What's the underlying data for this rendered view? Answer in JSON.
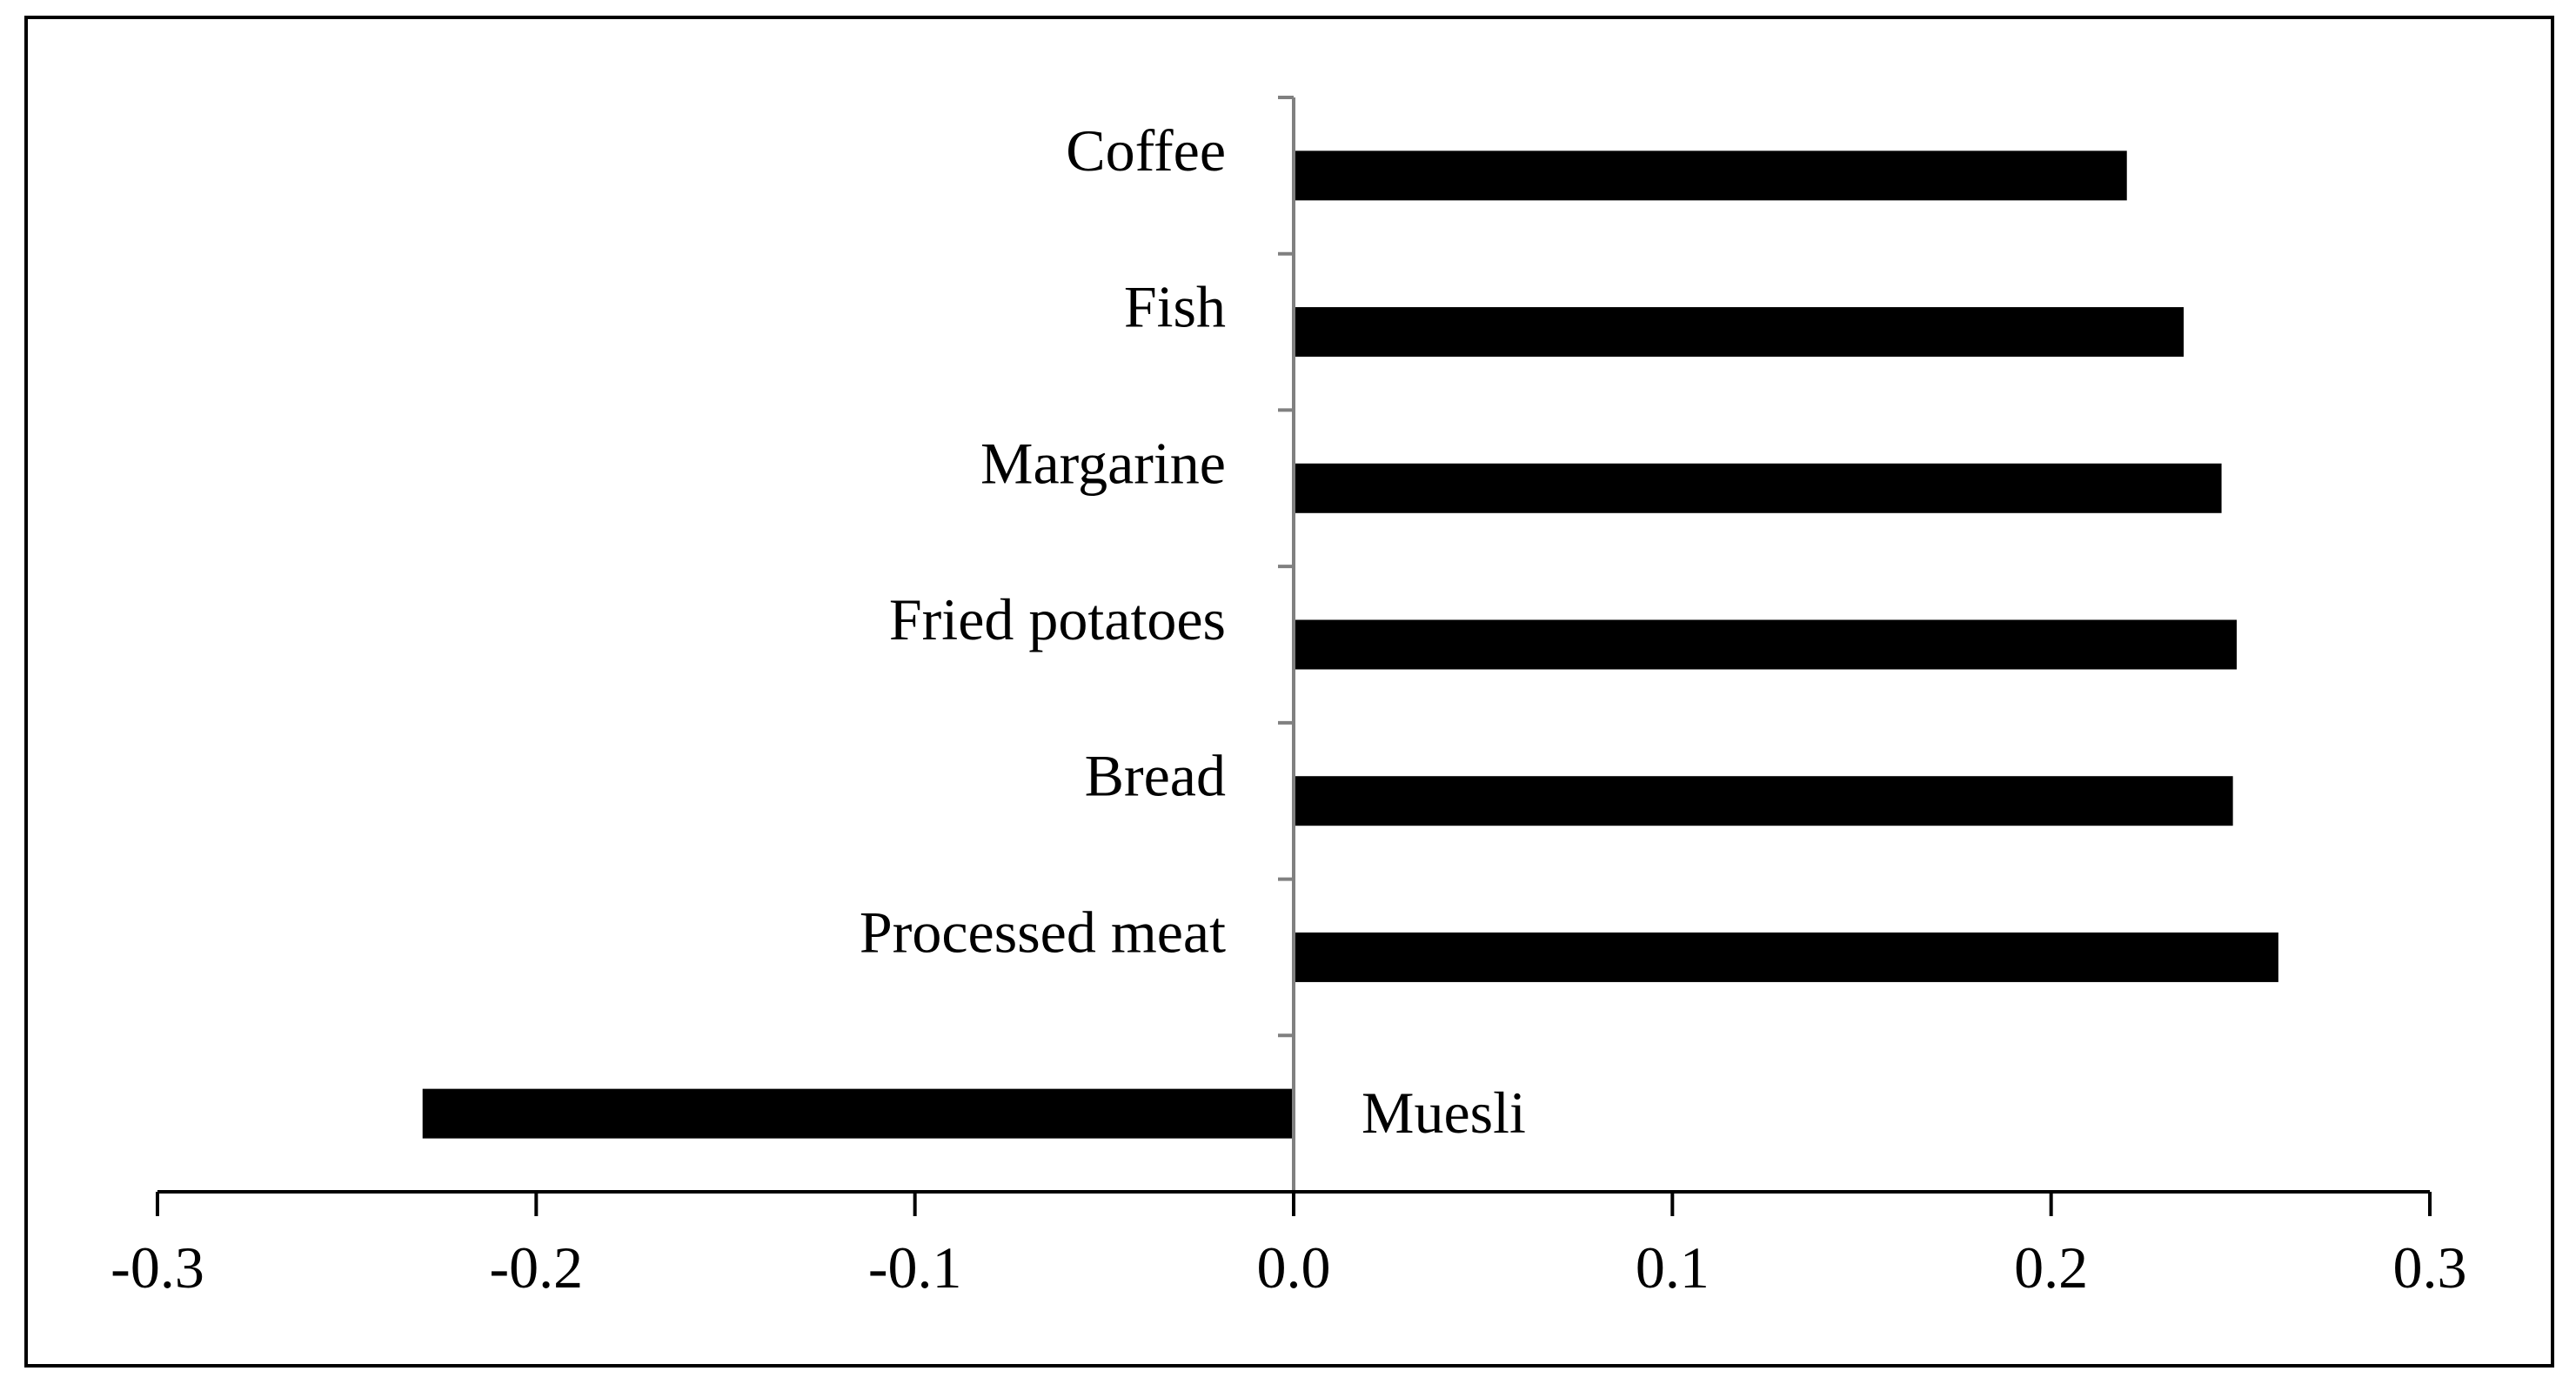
{
  "chart_data": {
    "type": "bar",
    "orientation": "horizontal",
    "title": "",
    "xlabel": "",
    "ylabel": "",
    "categories": [
      "Coffee",
      "Fish",
      "Margarine",
      "Fried potatoes",
      "Bread",
      "Processed meat",
      "Muesli"
    ],
    "values": [
      0.22,
      0.235,
      0.245,
      0.249,
      0.248,
      0.26,
      -0.23
    ],
    "xlim": [
      -0.3,
      0.3
    ],
    "xticks": [
      "-0.3",
      "-0.2",
      "-0.1",
      "0.0",
      "0.1",
      "0.2",
      "0.3"
    ],
    "grid": false,
    "legend": "none",
    "colors": {
      "bar": "#000000",
      "axis": "#000000",
      "zero_line": "#808080",
      "frame": "#000000"
    }
  }
}
